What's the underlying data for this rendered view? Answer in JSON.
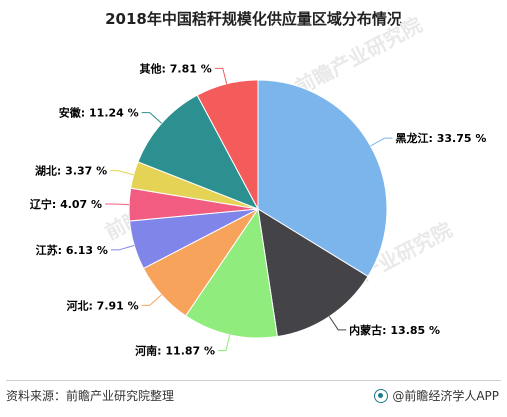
{
  "title": "2018年中国秸秆规模化供应量区域分布情况",
  "footer": {
    "source": "资料来源：前瞻产业研究院整理",
    "brand": "@前瞻经济学人APP"
  },
  "watermark": "前瞻产业研究院",
  "chart_data": {
    "type": "pie",
    "start_angle_deg": 90,
    "direction": "clockwise",
    "unit": "%",
    "slices": [
      {
        "name": "黑龙江",
        "value": 33.75,
        "label": "黑龙江: 33.75 %",
        "color": "#7cb5ec"
      },
      {
        "name": "内蒙古",
        "value": 13.85,
        "label": "内蒙古: 13.85 %",
        "color": "#434348"
      },
      {
        "name": "河南",
        "value": 11.87,
        "label": "河南: 11.87 %",
        "color": "#90ed7d"
      },
      {
        "name": "河北",
        "value": 7.91,
        "label": "河北: 7.91 %",
        "color": "#f7a35c"
      },
      {
        "name": "江苏",
        "value": 6.13,
        "label": "江苏: 6.13 %",
        "color": "#8085e9"
      },
      {
        "name": "辽宁",
        "value": 4.07,
        "label": "辽宁: 4.07 %",
        "color": "#f15c80"
      },
      {
        "name": "湖北",
        "value": 3.37,
        "label": "湖北: 3.37 %",
        "color": "#e4d354"
      },
      {
        "name": "安徽",
        "value": 11.24,
        "label": "安徽: 11.24 %",
        "color": "#2b908f"
      },
      {
        "name": "其他",
        "value": 7.81,
        "label": "其他: 7.81 %",
        "color": "#f45b5b"
      }
    ]
  }
}
